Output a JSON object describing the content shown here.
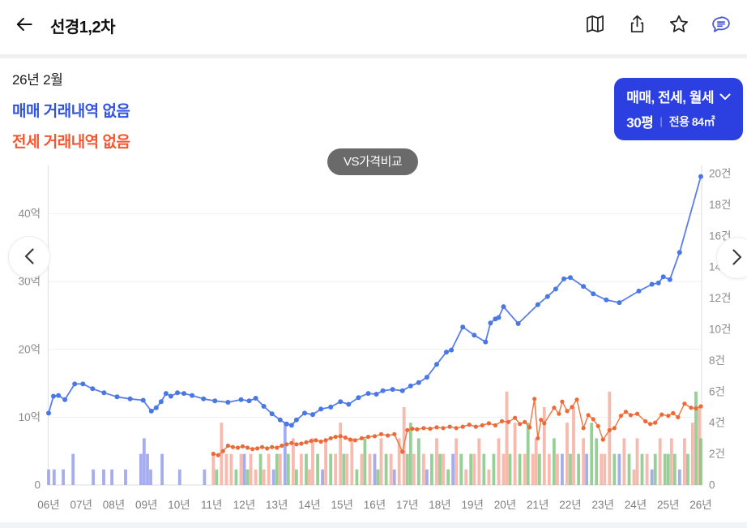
{
  "topbar": {
    "title": "선경1,2차",
    "icons": [
      "map-icon",
      "share-icon",
      "star-icon",
      "chat-icon"
    ]
  },
  "info": {
    "month": "26년 2월",
    "sale_status": "매매 거래내역 없음",
    "jeonse_status": "전세 거래내역 없음"
  },
  "filter_button": {
    "line1": "매매, 전세, 월세",
    "pyeong": "30평",
    "separator": "|",
    "area": "전용 84㎡"
  },
  "vs_button": {
    "label": "VS가격비교"
  },
  "colors": {
    "accent_blue": "#2c3fe1",
    "sale_text_blue": "#3153e0",
    "jeonse_text_orange": "#f4562e",
    "pill_gray": "#6a6a6a",
    "axis_text": "#8a8a8a",
    "grid": "#f0f0f0",
    "axis_line": "#e3e3e5"
  },
  "chart_data": {
    "type": "line+bar",
    "title": "",
    "left_axis": {
      "unit": "억",
      "ticks": [
        {
          "v": 0,
          "label": "0"
        },
        {
          "v": 10,
          "label": "10억"
        },
        {
          "v": 20,
          "label": "20억"
        },
        {
          "v": 30,
          "label": "30억"
        },
        {
          "v": 40,
          "label": "40억"
        }
      ],
      "max": 47
    },
    "right_axis": {
      "unit": "건",
      "ticks": [
        {
          "v": 0,
          "label": "0"
        },
        {
          "v": 2,
          "label": "2건"
        },
        {
          "v": 4,
          "label": "4건"
        },
        {
          "v": 6,
          "label": "6건"
        },
        {
          "v": 8,
          "label": "8건"
        },
        {
          "v": 10,
          "label": "10건"
        },
        {
          "v": 12,
          "label": "12건"
        },
        {
          "v": 14,
          "label": "14건"
        },
        {
          "v": 16,
          "label": "16건"
        },
        {
          "v": 18,
          "label": "18건"
        },
        {
          "v": 20,
          "label": "20건"
        }
      ],
      "max": 20
    },
    "x_ticks": [
      "06년",
      "07년",
      "08년",
      "09년",
      "10년",
      "11년",
      "12년",
      "13년",
      "14년",
      "15년",
      "16년",
      "17년",
      "18년",
      "19년",
      "20년",
      "21년",
      "22년",
      "23년",
      "24년",
      "25년",
      "26년"
    ],
    "series": [
      {
        "name": "매매가",
        "color": "#5b7ee6",
        "dot_color": "#4878e5",
        "dot_r": 3,
        "width": 1.8,
        "points": [
          [
            6.0,
            10.6
          ],
          [
            6.15,
            13.1
          ],
          [
            6.3,
            13.2
          ],
          [
            6.5,
            12.6
          ],
          [
            6.8,
            14.9
          ],
          [
            7.05,
            14.9
          ],
          [
            7.35,
            14.2
          ],
          [
            7.7,
            13.6
          ],
          [
            8.1,
            13.0
          ],
          [
            8.5,
            12.7
          ],
          [
            8.9,
            12.5
          ],
          [
            9.15,
            10.9
          ],
          [
            9.3,
            11.4
          ],
          [
            9.45,
            12.3
          ],
          [
            9.6,
            13.5
          ],
          [
            9.75,
            13.1
          ],
          [
            9.95,
            13.6
          ],
          [
            10.15,
            13.5
          ],
          [
            10.4,
            13.2
          ],
          [
            10.75,
            12.7
          ],
          [
            11.1,
            12.4
          ],
          [
            11.5,
            12.2
          ],
          [
            11.9,
            12.6
          ],
          [
            12.15,
            12.4
          ],
          [
            12.35,
            12.8
          ],
          [
            12.6,
            11.6
          ],
          [
            12.85,
            10.5
          ],
          [
            13.1,
            9.6
          ],
          [
            13.3,
            9.0
          ],
          [
            13.45,
            8.8
          ],
          [
            13.6,
            9.6
          ],
          [
            13.85,
            10.6
          ],
          [
            14.1,
            10.4
          ],
          [
            14.35,
            11.2
          ],
          [
            14.65,
            11.5
          ],
          [
            14.95,
            12.3
          ],
          [
            15.2,
            11.9
          ],
          [
            15.5,
            12.9
          ],
          [
            15.8,
            13.5
          ],
          [
            16.05,
            13.4
          ],
          [
            16.25,
            13.9
          ],
          [
            16.55,
            14.1
          ],
          [
            16.85,
            13.9
          ],
          [
            17.1,
            14.6
          ],
          [
            17.35,
            15.1
          ],
          [
            17.6,
            15.9
          ],
          [
            17.9,
            17.8
          ],
          [
            18.2,
            19.6
          ],
          [
            18.35,
            19.9
          ],
          [
            18.7,
            23.3
          ],
          [
            19.05,
            22.1
          ],
          [
            19.4,
            21.1
          ],
          [
            19.55,
            23.9
          ],
          [
            19.7,
            24.5
          ],
          [
            19.8,
            24.7
          ],
          [
            19.95,
            26.3
          ],
          [
            20.4,
            23.8
          ],
          [
            21.0,
            26.6
          ],
          [
            21.3,
            27.8
          ],
          [
            21.55,
            28.9
          ],
          [
            21.8,
            30.4
          ],
          [
            22.0,
            30.6
          ],
          [
            22.4,
            29.3
          ],
          [
            22.7,
            28.2
          ],
          [
            23.1,
            27.3
          ],
          [
            23.5,
            26.9
          ],
          [
            24.1,
            28.6
          ],
          [
            24.5,
            29.6
          ],
          [
            24.7,
            29.8
          ],
          [
            24.85,
            30.7
          ],
          [
            25.05,
            30.3
          ],
          [
            25.35,
            34.3
          ],
          [
            26.0,
            45.5
          ]
        ]
      },
      {
        "name": "전세가",
        "color": "#ef7b4a",
        "dot_color": "#ed6a38",
        "dot_r": 2.6,
        "width": 1.5,
        "points": [
          [
            11.05,
            4.6
          ],
          [
            11.2,
            4.4
          ],
          [
            11.35,
            5.0
          ],
          [
            11.5,
            5.8
          ],
          [
            11.65,
            5.6
          ],
          [
            11.8,
            5.5
          ],
          [
            11.95,
            5.7
          ],
          [
            12.1,
            5.5
          ],
          [
            12.25,
            5.3
          ],
          [
            12.4,
            5.4
          ],
          [
            12.55,
            5.6
          ],
          [
            12.7,
            5.4
          ],
          [
            12.85,
            5.6
          ],
          [
            13.0,
            5.5
          ],
          [
            13.15,
            5.8
          ],
          [
            13.3,
            6.0
          ],
          [
            13.45,
            6.2
          ],
          [
            13.6,
            6.0
          ],
          [
            13.75,
            6.1
          ],
          [
            13.9,
            6.3
          ],
          [
            14.05,
            6.5
          ],
          [
            14.2,
            6.6
          ],
          [
            14.35,
            6.4
          ],
          [
            14.5,
            6.6
          ],
          [
            14.65,
            6.9
          ],
          [
            14.8,
            7.1
          ],
          [
            14.95,
            7.2
          ],
          [
            15.1,
            7.0
          ],
          [
            15.25,
            6.7
          ],
          [
            15.4,
            6.6
          ],
          [
            15.6,
            6.9
          ],
          [
            15.8,
            7.1
          ],
          [
            16.0,
            7.2
          ],
          [
            16.2,
            7.5
          ],
          [
            16.4,
            7.3
          ],
          [
            16.6,
            7.5
          ],
          [
            16.85,
            4.9
          ],
          [
            17.0,
            8.1
          ],
          [
            17.15,
            8.3
          ],
          [
            17.3,
            8.2
          ],
          [
            17.5,
            8.4
          ],
          [
            17.7,
            8.3
          ],
          [
            17.9,
            8.5
          ],
          [
            18.1,
            8.4
          ],
          [
            18.3,
            8.6
          ],
          [
            18.5,
            8.4
          ],
          [
            18.7,
            8.6
          ],
          [
            18.9,
            8.9
          ],
          [
            19.1,
            8.6
          ],
          [
            19.3,
            8.8
          ],
          [
            19.5,
            9.1
          ],
          [
            19.7,
            8.8
          ],
          [
            19.9,
            9.4
          ],
          [
            20.1,
            9.3
          ],
          [
            20.3,
            9.9
          ],
          [
            20.45,
            9.0
          ],
          [
            20.6,
            9.3
          ],
          [
            20.75,
            8.5
          ],
          [
            20.9,
            12.7
          ],
          [
            21.0,
            6.9
          ],
          [
            21.1,
            9.6
          ],
          [
            21.2,
            9.1
          ],
          [
            21.5,
            11.4
          ],
          [
            21.65,
            10.5
          ],
          [
            21.75,
            12.3
          ],
          [
            21.9,
            10.9
          ],
          [
            22.05,
            11.5
          ],
          [
            22.2,
            12.6
          ],
          [
            22.4,
            8.4
          ],
          [
            22.55,
            10.3
          ],
          [
            22.7,
            9.7
          ],
          [
            22.85,
            8.7
          ],
          [
            23.0,
            6.7
          ],
          [
            23.2,
            8.1
          ],
          [
            23.35,
            8.4
          ],
          [
            23.55,
            10.2
          ],
          [
            23.7,
            10.8
          ],
          [
            23.85,
            10.3
          ],
          [
            24.05,
            10.5
          ],
          [
            24.3,
            9.4
          ],
          [
            24.45,
            9.0
          ],
          [
            24.6,
            9.2
          ],
          [
            24.8,
            10.4
          ],
          [
            25.0,
            10.2
          ],
          [
            25.15,
            10.6
          ],
          [
            25.3,
            10.0
          ],
          [
            25.5,
            12.0
          ],
          [
            25.7,
            11.4
          ],
          [
            25.85,
            11.3
          ],
          [
            26.0,
            11.6
          ]
        ]
      }
    ],
    "bar_colors": {
      "b": "#9099e9",
      "o": "#f4a99b",
      "g": "#7dc47d"
    },
    "bars": [
      [
        6.0,
        1,
        "b"
      ],
      [
        6.17,
        1,
        "b"
      ],
      [
        6.45,
        1,
        "b"
      ],
      [
        6.75,
        2,
        "b"
      ],
      [
        7.37,
        1,
        "b"
      ],
      [
        7.69,
        1,
        "b"
      ],
      [
        7.94,
        1,
        "b"
      ],
      [
        8.36,
        1,
        "b"
      ],
      [
        8.83,
        2,
        "b"
      ],
      [
        8.93,
        3,
        "b"
      ],
      [
        9.03,
        2,
        "b"
      ],
      [
        9.13,
        1,
        "b"
      ],
      [
        9.48,
        2,
        "b"
      ],
      [
        10.02,
        1,
        "b"
      ],
      [
        10.78,
        1,
        "b"
      ],
      [
        11.05,
        2,
        "o"
      ],
      [
        11.15,
        1,
        "g"
      ],
      [
        11.3,
        4,
        "o"
      ],
      [
        11.45,
        2,
        "o"
      ],
      [
        11.6,
        2,
        "o"
      ],
      [
        11.75,
        1,
        "g"
      ],
      [
        11.9,
        2,
        "o"
      ],
      [
        12.0,
        2,
        "b"
      ],
      [
        12.1,
        1,
        "g"
      ],
      [
        12.2,
        2,
        "o"
      ],
      [
        12.35,
        1,
        "o"
      ],
      [
        12.5,
        2,
        "g"
      ],
      [
        12.6,
        1,
        "o"
      ],
      [
        12.75,
        2,
        "o"
      ],
      [
        12.9,
        1,
        "b"
      ],
      [
        13.0,
        2,
        "g"
      ],
      [
        13.1,
        2,
        "o"
      ],
      [
        13.25,
        4,
        "b"
      ],
      [
        13.35,
        2,
        "g"
      ],
      [
        13.5,
        3,
        "o"
      ],
      [
        13.6,
        1,
        "g"
      ],
      [
        13.75,
        2,
        "o"
      ],
      [
        13.9,
        2,
        "g"
      ],
      [
        14.0,
        1,
        "o"
      ],
      [
        14.1,
        3,
        "o"
      ],
      [
        14.25,
        2,
        "g"
      ],
      [
        14.4,
        1,
        "b"
      ],
      [
        14.5,
        3,
        "o"
      ],
      [
        14.65,
        2,
        "g"
      ],
      [
        14.8,
        2,
        "o"
      ],
      [
        14.95,
        4,
        "o"
      ],
      [
        15.05,
        2,
        "g"
      ],
      [
        15.15,
        2,
        "o"
      ],
      [
        15.3,
        3,
        "o"
      ],
      [
        15.45,
        1,
        "g"
      ],
      [
        15.6,
        2,
        "o"
      ],
      [
        15.7,
        3,
        "g"
      ],
      [
        15.85,
        2,
        "o"
      ],
      [
        16.0,
        2,
        "b"
      ],
      [
        16.1,
        1,
        "g"
      ],
      [
        16.2,
        3,
        "o"
      ],
      [
        16.35,
        2,
        "g"
      ],
      [
        16.5,
        2,
        "o"
      ],
      [
        16.6,
        1,
        "b"
      ],
      [
        16.75,
        3,
        "o"
      ],
      [
        16.9,
        5,
        "o"
      ],
      [
        17.0,
        2,
        "g"
      ],
      [
        17.1,
        4,
        "g"
      ],
      [
        17.2,
        2,
        "o"
      ],
      [
        17.35,
        3,
        "g"
      ],
      [
        17.5,
        2,
        "o"
      ],
      [
        17.6,
        1,
        "b"
      ],
      [
        17.75,
        2,
        "g"
      ],
      [
        17.9,
        3,
        "o"
      ],
      [
        18.0,
        2,
        "g"
      ],
      [
        18.1,
        2,
        "o"
      ],
      [
        18.25,
        1,
        "g"
      ],
      [
        18.4,
        2,
        "b"
      ],
      [
        18.5,
        3,
        "o"
      ],
      [
        18.65,
        2,
        "g"
      ],
      [
        18.8,
        1,
        "o"
      ],
      [
        18.95,
        2,
        "g"
      ],
      [
        19.05,
        2,
        "o"
      ],
      [
        19.2,
        3,
        "o"
      ],
      [
        19.35,
        2,
        "g"
      ],
      [
        19.5,
        1,
        "o"
      ],
      [
        19.65,
        2,
        "g"
      ],
      [
        19.8,
        3,
        "o"
      ],
      [
        19.95,
        2,
        "o"
      ],
      [
        20.05,
        6,
        "o"
      ],
      [
        20.15,
        2,
        "g"
      ],
      [
        20.3,
        4,
        "o"
      ],
      [
        20.45,
        2,
        "g"
      ],
      [
        20.6,
        2,
        "o"
      ],
      [
        20.7,
        4,
        "g"
      ],
      [
        20.85,
        2,
        "o"
      ],
      [
        20.95,
        3,
        "o"
      ],
      [
        21.05,
        2,
        "g"
      ],
      [
        21.2,
        5,
        "o"
      ],
      [
        21.35,
        2,
        "o"
      ],
      [
        21.5,
        3,
        "g"
      ],
      [
        21.6,
        2,
        "o"
      ],
      [
        21.75,
        2,
        "b"
      ],
      [
        21.9,
        4,
        "o"
      ],
      [
        22.0,
        2,
        "g"
      ],
      [
        22.1,
        5,
        "o"
      ],
      [
        22.25,
        2,
        "g"
      ],
      [
        22.4,
        3,
        "o"
      ],
      [
        22.5,
        2,
        "b"
      ],
      [
        22.65,
        4,
        "g"
      ],
      [
        22.8,
        3,
        "g"
      ],
      [
        22.95,
        2,
        "o"
      ],
      [
        23.05,
        2,
        "o"
      ],
      [
        23.2,
        6,
        "o"
      ],
      [
        23.35,
        2,
        "g"
      ],
      [
        23.5,
        2,
        "b"
      ],
      [
        23.65,
        3,
        "o"
      ],
      [
        23.8,
        2,
        "g"
      ],
      [
        23.95,
        1,
        "o"
      ],
      [
        24.05,
        3,
        "o"
      ],
      [
        24.2,
        2,
        "g"
      ],
      [
        24.35,
        2,
        "o"
      ],
      [
        24.5,
        1,
        "b"
      ],
      [
        24.6,
        2,
        "g"
      ],
      [
        24.75,
        3,
        "o"
      ],
      [
        24.9,
        2,
        "g"
      ],
      [
        25.0,
        2,
        "g"
      ],
      [
        25.1,
        3,
        "o"
      ],
      [
        25.2,
        2,
        "g"
      ],
      [
        25.35,
        1,
        "b"
      ],
      [
        25.5,
        3,
        "o"
      ],
      [
        25.6,
        2,
        "g"
      ],
      [
        25.75,
        4,
        "o"
      ],
      [
        25.85,
        6,
        "g"
      ],
      [
        25.95,
        5,
        "o"
      ],
      [
        26.0,
        3,
        "g"
      ]
    ],
    "layout": {
      "grid": true,
      "legend": "none"
    }
  }
}
